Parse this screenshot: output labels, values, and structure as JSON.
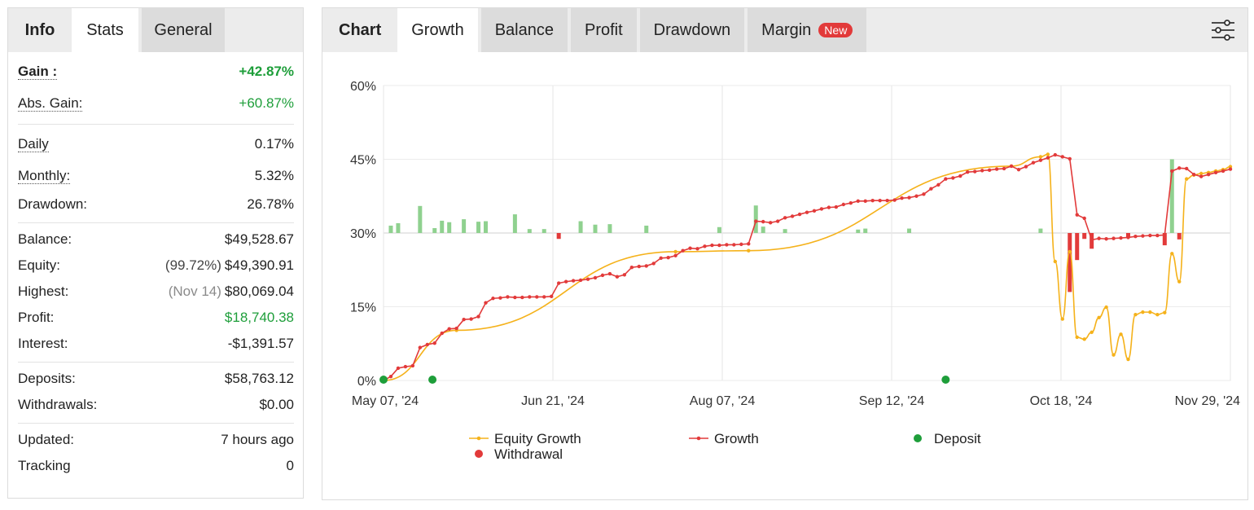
{
  "left_tabs": [
    "Info",
    "Stats",
    "General"
  ],
  "stats": {
    "gain": {
      "label": "Gain :",
      "value": "+42.87%"
    },
    "abs_gain": {
      "label": "Abs. Gain:",
      "value": "+60.87%"
    },
    "daily": {
      "label": "Daily",
      "value": "0.17%"
    },
    "monthly": {
      "label": "Monthly:",
      "value": "5.32%"
    },
    "drawdown": {
      "label": "Drawdown:",
      "value": "26.78%"
    },
    "balance": {
      "label": "Balance:",
      "value": "$49,528.67"
    },
    "equity": {
      "label": "Equity:",
      "pre": "(99.72%)",
      "value": "$49,390.91"
    },
    "highest": {
      "label": "Highest:",
      "pre": "(Nov 14)",
      "value": "$80,069.04"
    },
    "profit": {
      "label": "Profit:",
      "value": "$18,740.38"
    },
    "interest": {
      "label": "Interest:",
      "value": "-$1,391.57"
    },
    "deposits": {
      "label": "Deposits:",
      "value": "$58,763.12"
    },
    "withdrawals": {
      "label": "Withdrawals:",
      "value": "$0.00"
    },
    "updated": {
      "label": "Updated:",
      "value": "7 hours ago"
    },
    "tracking": {
      "label": "Tracking",
      "value": "0"
    }
  },
  "right_tabs": {
    "chart": "Chart",
    "growth": "Growth",
    "balance": "Balance",
    "profit": "Profit",
    "drawdown": "Drawdown",
    "margin": "Margin",
    "margin_badge": "New"
  },
  "icons": {
    "settings": "sliders-icon"
  },
  "colors": {
    "equity": "#f5b21b",
    "growth": "#e23a3a",
    "deposit": "#1e9e3a",
    "withdrawal": "#e23a3a",
    "bar_pos": "#8fd18f",
    "bar_neg": "#e23a3a",
    "gain_green": "#1e9e3a"
  },
  "chart_data": {
    "type": "line",
    "y_ticks": [
      "60%",
      "45%",
      "30%",
      "15%",
      "0%"
    ],
    "ylim": [
      0,
      60
    ],
    "x_ticks": [
      "May 07, '24",
      "Jun 21, '24",
      "Aug 07, '24",
      "Sep 12, '24",
      "Oct 18, '24",
      "Nov 29, '24"
    ],
    "grid": true,
    "legend": [
      "Equity Growth",
      "Growth",
      "Deposit",
      "Withdrawal"
    ],
    "legend_position": "bottom",
    "growth": [
      [
        0,
        0
      ],
      [
        1,
        0.8
      ],
      [
        2,
        2.5
      ],
      [
        3,
        2.8
      ],
      [
        4,
        3.0
      ],
      [
        5,
        6.7
      ],
      [
        6,
        7.3
      ],
      [
        7,
        7.6
      ],
      [
        8,
        9.6
      ],
      [
        9,
        10.5
      ],
      [
        10,
        10.6
      ],
      [
        11,
        12.4
      ],
      [
        12,
        12.5
      ],
      [
        13,
        13.0
      ],
      [
        14,
        15.8
      ],
      [
        15,
        16.7
      ],
      [
        16,
        16.8
      ],
      [
        17,
        17.0
      ],
      [
        18,
        16.9
      ],
      [
        19,
        16.9
      ],
      [
        20,
        17.0
      ],
      [
        21,
        17.0
      ],
      [
        22,
        17.0
      ],
      [
        23,
        17.1
      ],
      [
        24,
        19.8
      ],
      [
        25,
        20.1
      ],
      [
        26,
        20.3
      ],
      [
        27,
        20.4
      ],
      [
        28,
        20.6
      ],
      [
        29,
        20.9
      ],
      [
        30,
        21.4
      ],
      [
        31,
        21.7
      ],
      [
        32,
        21.1
      ],
      [
        33,
        21.5
      ],
      [
        34,
        23.0
      ],
      [
        35,
        23.2
      ],
      [
        36,
        23.3
      ],
      [
        37,
        23.8
      ],
      [
        38,
        24.9
      ],
      [
        39,
        25.0
      ],
      [
        40,
        25.4
      ],
      [
        41,
        26.4
      ],
      [
        42,
        26.9
      ],
      [
        43,
        26.8
      ],
      [
        44,
        27.3
      ],
      [
        45,
        27.5
      ],
      [
        46,
        27.5
      ],
      [
        47,
        27.6
      ],
      [
        48,
        27.6
      ],
      [
        49,
        27.7
      ],
      [
        50,
        27.8
      ],
      [
        51,
        32.4
      ],
      [
        52,
        32.3
      ],
      [
        53,
        32.1
      ],
      [
        54,
        32.4
      ],
      [
        55,
        33.1
      ],
      [
        56,
        33.4
      ],
      [
        57,
        33.8
      ],
      [
        58,
        34.2
      ],
      [
        59,
        34.5
      ],
      [
        60,
        34.9
      ],
      [
        61,
        35.2
      ],
      [
        62,
        35.3
      ],
      [
        63,
        35.8
      ],
      [
        64,
        36.1
      ],
      [
        65,
        36.5
      ],
      [
        66,
        36.5
      ],
      [
        67,
        36.6
      ],
      [
        68,
        36.6
      ],
      [
        69,
        36.6
      ],
      [
        70,
        36.7
      ],
      [
        71,
        37.1
      ],
      [
        72,
        37.2
      ],
      [
        73,
        37.5
      ],
      [
        74,
        37.9
      ],
      [
        75,
        39.0
      ],
      [
        76,
        39.8
      ],
      [
        77,
        41.0
      ],
      [
        78,
        41.2
      ],
      [
        79,
        41.6
      ],
      [
        80,
        42.4
      ],
      [
        81,
        42.5
      ],
      [
        82,
        42.7
      ],
      [
        83,
        42.8
      ],
      [
        84,
        43.0
      ],
      [
        85,
        43.1
      ],
      [
        86,
        43.6
      ],
      [
        87,
        42.9
      ],
      [
        88,
        43.5
      ],
      [
        89,
        44.3
      ],
      [
        90,
        44.8
      ],
      [
        91,
        45.3
      ],
      [
        92,
        45.9
      ],
      [
        93,
        45.5
      ],
      [
        94,
        45.1
      ],
      [
        95,
        33.7
      ],
      [
        96,
        33.0
      ],
      [
        97,
        28.6
      ],
      [
        98,
        28.9
      ],
      [
        99,
        28.8
      ],
      [
        100,
        28.9
      ],
      [
        101,
        29.0
      ],
      [
        102,
        29.1
      ],
      [
        103,
        29.3
      ],
      [
        104,
        29.4
      ],
      [
        105,
        29.5
      ],
      [
        106,
        29.5
      ],
      [
        107,
        29.6
      ],
      [
        108,
        42.6
      ],
      [
        109,
        43.2
      ],
      [
        110,
        43.1
      ],
      [
        111,
        41.9
      ],
      [
        112,
        41.5
      ],
      [
        113,
        41.9
      ],
      [
        114,
        42.3
      ],
      [
        115,
        42.6
      ],
      [
        116,
        43.0
      ]
    ],
    "equity_growth": [
      [
        0,
        0
      ],
      [
        10,
        10.2
      ],
      [
        40,
        26.2
      ],
      [
        50,
        26.4
      ],
      [
        86,
        43.6
      ],
      [
        90,
        45.5
      ],
      [
        91,
        46.0
      ],
      [
        92,
        24.2
      ],
      [
        93,
        12.5
      ],
      [
        94,
        26.2
      ],
      [
        95,
        8.8
      ],
      [
        96,
        8.4
      ],
      [
        97,
        9.8
      ],
      [
        98,
        12.8
      ],
      [
        99,
        14.9
      ],
      [
        100,
        5.2
      ],
      [
        101,
        9.4
      ],
      [
        102,
        4.3
      ],
      [
        103,
        13.4
      ],
      [
        104,
        13.9
      ],
      [
        105,
        13.9
      ],
      [
        106,
        13.4
      ],
      [
        107,
        13.8
      ],
      [
        108,
        25.8
      ],
      [
        109,
        20.1
      ],
      [
        110,
        41.0
      ],
      [
        111,
        41.8
      ],
      [
        112,
        42.1
      ],
      [
        113,
        42.3
      ],
      [
        114,
        42.6
      ],
      [
        115,
        42.9
      ],
      [
        116,
        43.5
      ]
    ],
    "deposits": [
      0,
      6.7,
      77
    ],
    "withdrawals": [],
    "bars": [
      [
        1,
        1.5
      ],
      [
        2,
        2.0
      ],
      [
        5,
        5.5
      ],
      [
        7,
        1.0
      ],
      [
        8,
        2.5
      ],
      [
        9,
        2.2
      ],
      [
        11,
        2.8
      ],
      [
        13,
        2.3
      ],
      [
        14,
        2.4
      ],
      [
        18,
        3.8
      ],
      [
        20,
        0.8
      ],
      [
        22,
        0.8
      ],
      [
        24,
        -1.2
      ],
      [
        27,
        2.4
      ],
      [
        29,
        1.7
      ],
      [
        31,
        1.8
      ],
      [
        36,
        1.5
      ],
      [
        46,
        1.2
      ],
      [
        51,
        5.6
      ],
      [
        52,
        1.3
      ],
      [
        55,
        0.8
      ],
      [
        65,
        0.7
      ],
      [
        66,
        0.9
      ],
      [
        72,
        0.9
      ],
      [
        90,
        0.9
      ],
      [
        94,
        -12.0
      ],
      [
        95,
        -5.5
      ],
      [
        96,
        -1.2
      ],
      [
        97,
        -3.2
      ],
      [
        102,
        -1.0
      ],
      [
        107,
        -2.5
      ],
      [
        108,
        15.0
      ],
      [
        109,
        -1.3
      ]
    ]
  }
}
